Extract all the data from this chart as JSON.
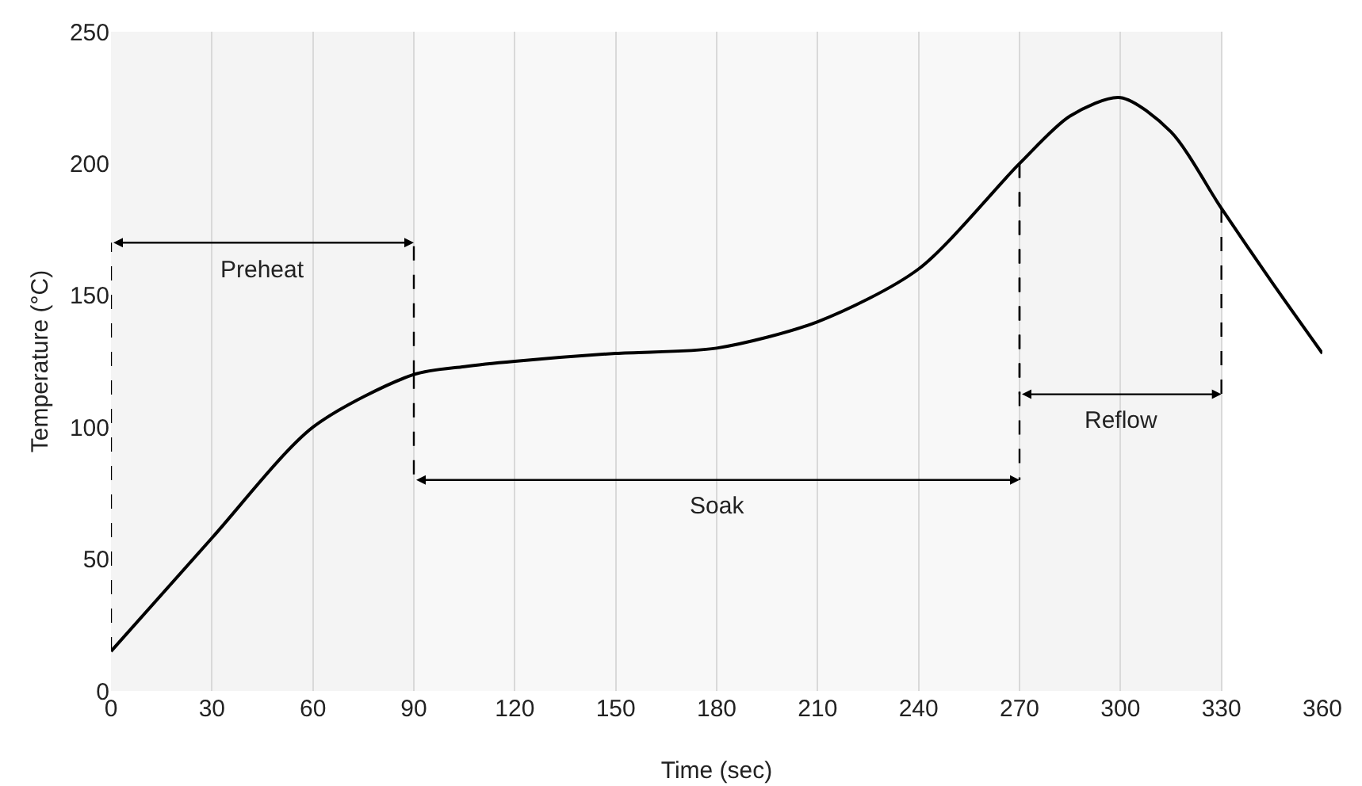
{
  "chart_data": {
    "type": "line",
    "xlabel": "Time (sec)",
    "ylabel": "Temperature (°C)",
    "x": [
      0,
      30,
      60,
      90,
      105,
      120,
      150,
      180,
      210,
      240,
      270,
      285,
      300,
      315,
      330,
      345,
      360
    ],
    "series": [
      {
        "color": "#000000",
        "values": [
          15,
          58,
          100,
          120,
          123,
          125,
          128,
          130,
          140,
          160,
          200,
          218,
          225,
          212,
          183,
          155,
          128
        ]
      }
    ],
    "xlim": [
      0,
      360
    ],
    "xticks": [
      0,
      30,
      60,
      90,
      120,
      150,
      180,
      210,
      240,
      270,
      300,
      330,
      360
    ],
    "ylim": [
      0,
      250
    ],
    "yticks": [
      0,
      50,
      100,
      150,
      200,
      250
    ],
    "grid": "x",
    "marker": "none",
    "line_style": "solid",
    "bands": [
      {
        "axis": "x",
        "from": 0,
        "to": 90,
        "label": "Preheat",
        "color": "#f4f4f4"
      },
      {
        "axis": "x",
        "from": 90,
        "to": 270,
        "label": "Soak",
        "color": "#f8f8f8"
      },
      {
        "axis": "x",
        "from": 270,
        "to": 330,
        "label": "Reflow",
        "color": "#f4f4f4"
      }
    ]
  }
}
